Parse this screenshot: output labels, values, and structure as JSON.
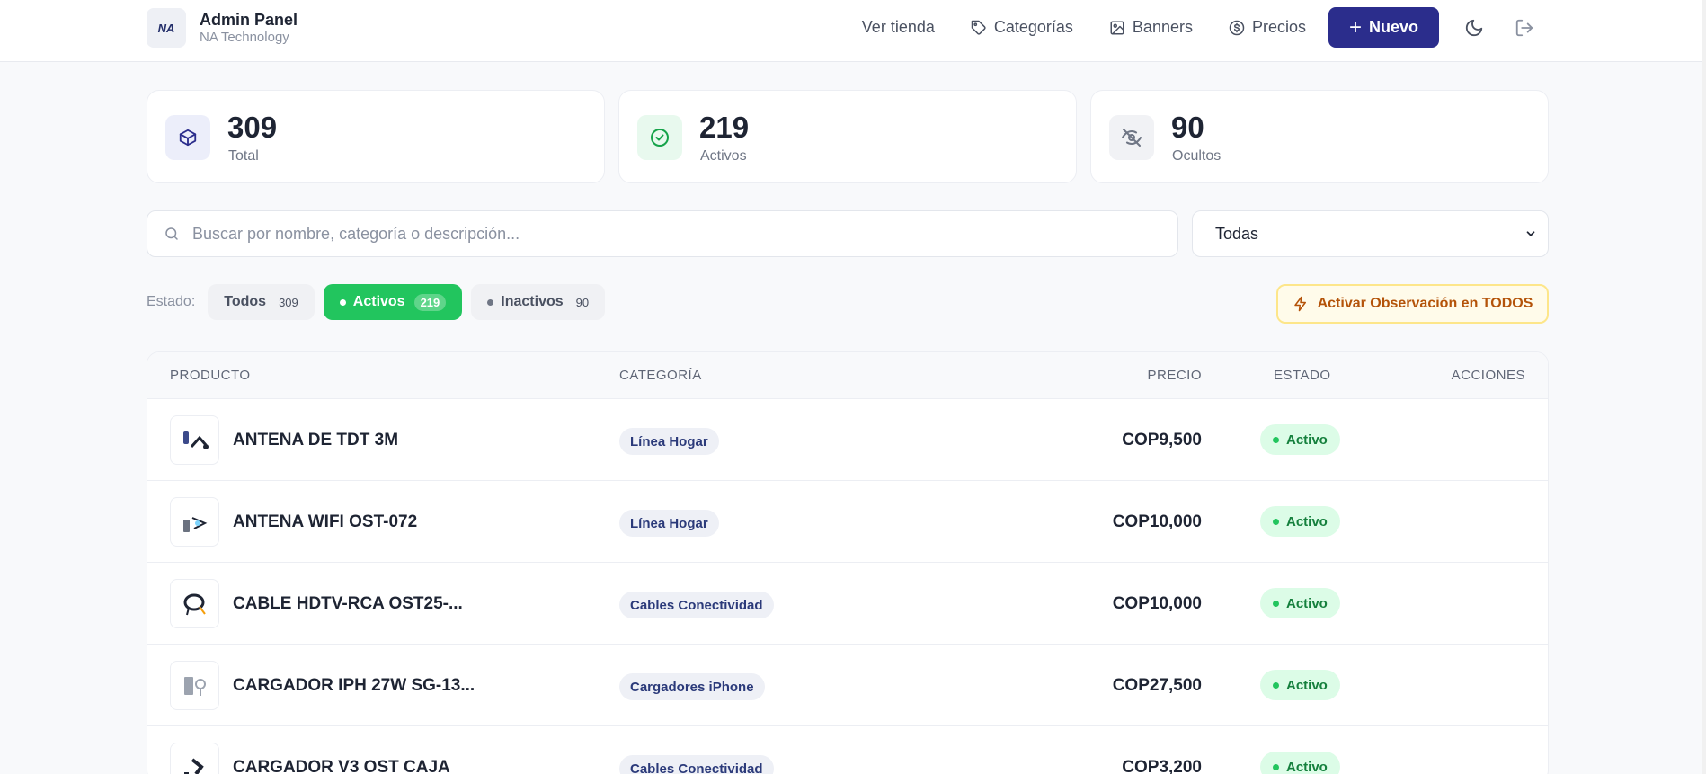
{
  "header": {
    "brand_title": "Admin Panel",
    "brand_subtitle": "NA Technology",
    "logo_text": "NA",
    "nav": {
      "store": "Ver tienda",
      "categories": "Categorías",
      "banners": "Banners",
      "prices": "Precios",
      "new_button": "Nuevo"
    }
  },
  "stats": [
    {
      "value": "309",
      "label": "Total",
      "icon": "cube-icon"
    },
    {
      "value": "219",
      "label": "Activos",
      "icon": "check-circle-icon"
    },
    {
      "value": "90",
      "label": "Ocultos",
      "icon": "eye-off-icon"
    }
  ],
  "search": {
    "placeholder": "Buscar por nombre, categoría o descripción...",
    "value": ""
  },
  "category_filter": {
    "selected": "Todas"
  },
  "status_filter": {
    "label": "Estado:",
    "options": [
      {
        "label": "Todos",
        "count": "309"
      },
      {
        "label": "Activos",
        "count": "219"
      },
      {
        "label": "Inactivos",
        "count": "90"
      }
    ]
  },
  "observation_button": "Activar Observación en TODOS",
  "table": {
    "columns": [
      "PRODUCTO",
      "CATEGORÍA",
      "PRECIO",
      "ESTADO",
      "ACCIONES"
    ],
    "rows": [
      {
        "name": "ANTENA DE TDT 3M",
        "category": "Línea Hogar",
        "price": "COP9,500",
        "status": "Activo"
      },
      {
        "name": "ANTENA WIFI OST-072",
        "category": "Línea Hogar",
        "price": "COP10,000",
        "status": "Activo"
      },
      {
        "name": "CABLE HDTV-RCA OST25-...",
        "category": "Cables Conectividad",
        "price": "COP10,000",
        "status": "Activo"
      },
      {
        "name": "CARGADOR IPH 27W SG-13...",
        "category": "Cargadores iPhone",
        "price": "COP27,500",
        "status": "Activo"
      },
      {
        "name": "CARGADOR V3 OST CAJA",
        "category": "Cables Conectividad",
        "price": "COP3,200",
        "status": "Activo"
      }
    ]
  },
  "colors": {
    "primary": "#2b2d8c",
    "active_green": "#22c55e",
    "warning_border": "#fde68a",
    "warning_text": "#b45309"
  }
}
